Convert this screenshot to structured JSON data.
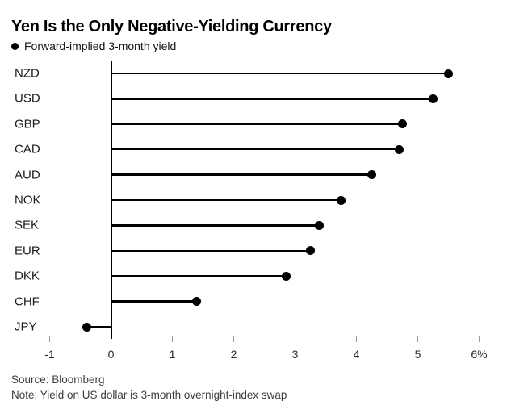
{
  "title": "Yen Is the Only Negative-Yielding Currency",
  "legend": {
    "marker": "circle",
    "label": "Forward-implied 3-month yield"
  },
  "footer": {
    "source": "Source: Bloomberg",
    "note": "Note: Yield on US dollar is 3-month overnight-index swap"
  },
  "chart_data": {
    "type": "bar",
    "subtype": "horizontal-lollipop",
    "title": "Yen Is the Only Negative-Yielding Currency",
    "series_name": "Forward-implied 3-month yield",
    "categories": [
      "NZD",
      "USD",
      "GBP",
      "CAD",
      "AUD",
      "NOK",
      "SEK",
      "EUR",
      "DKK",
      "CHF",
      "JPY"
    ],
    "values": [
      5.5,
      5.25,
      4.75,
      4.7,
      4.25,
      3.75,
      3.4,
      3.25,
      2.85,
      1.4,
      -0.4
    ],
    "unit": "%",
    "xlabel": "",
    "ylabel": "",
    "xlim": [
      -1.25,
      6.45
    ],
    "xticks": [
      -1,
      0,
      1,
      2,
      3,
      4,
      5,
      6
    ],
    "xtick_labels": [
      "-1",
      "0",
      "1",
      "2",
      "3",
      "4",
      "5",
      "6%"
    ],
    "baseline": 0,
    "grid": false,
    "legend_position": "top-left",
    "colors": {
      "bar": "#000000",
      "dot": "#000000",
      "axis": "#000000",
      "tick": "#9b9b9b",
      "tick_label": "#2b2b2b",
      "title": "#000000",
      "source_text": "#3d3d3d",
      "background": "#ffffff"
    }
  }
}
